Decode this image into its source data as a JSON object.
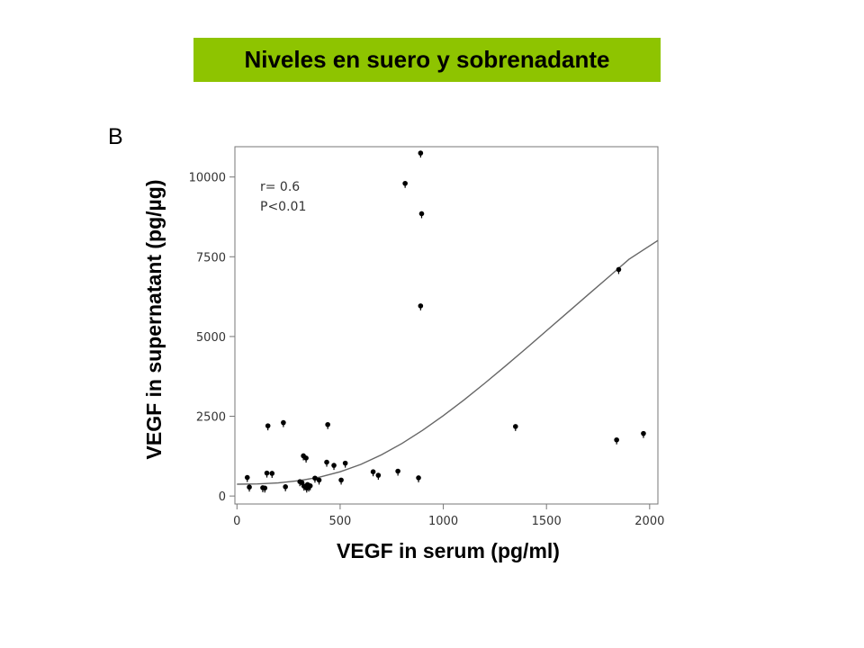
{
  "banner": {
    "title": "Niveles en suero y sobrenadante",
    "background": "#8ec400"
  },
  "chart_data": {
    "type": "scatter",
    "panel_label": "B",
    "xlabel": "VEGF in serum (pg/ml)",
    "ylabel": "VEGF in supernatant (pg/µg)",
    "xlim": [
      -10,
      2040
    ],
    "ylim": [
      -250,
      10950
    ],
    "x_ticks": [
      0,
      500,
      1000,
      1500,
      2000
    ],
    "x_tick_labels": [
      "0",
      "500",
      "1000",
      "1500",
      "2000"
    ],
    "y_ticks": [
      0,
      2500,
      5000,
      7500,
      10000
    ],
    "y_tick_labels": [
      "0",
      "2500",
      "5000",
      "7500",
      "10000"
    ],
    "grid": false,
    "annotations": [
      "r= 0.6",
      "P<0.01"
    ],
    "series": [
      {
        "kind": "points",
        "color": "#000000",
        "points": [
          [
            50,
            580
          ],
          [
            60,
            280
          ],
          [
            125,
            260
          ],
          [
            135,
            250
          ],
          [
            145,
            720
          ],
          [
            150,
            2200
          ],
          [
            170,
            710
          ],
          [
            225,
            2300
          ],
          [
            235,
            290
          ],
          [
            305,
            450
          ],
          [
            315,
            420
          ],
          [
            322,
            1260
          ],
          [
            325,
            310
          ],
          [
            335,
            1190
          ],
          [
            338,
            250
          ],
          [
            342,
            360
          ],
          [
            348,
            280
          ],
          [
            355,
            320
          ],
          [
            378,
            560
          ],
          [
            398,
            500
          ],
          [
            435,
            1060
          ],
          [
            440,
            2240
          ],
          [
            470,
            960
          ],
          [
            505,
            500
          ],
          [
            525,
            1030
          ],
          [
            660,
            760
          ],
          [
            685,
            650
          ],
          [
            780,
            780
          ],
          [
            815,
            9800
          ],
          [
            880,
            570
          ],
          [
            890,
            10750
          ],
          [
            890,
            5960
          ],
          [
            895,
            8850
          ],
          [
            1350,
            2180
          ],
          [
            1840,
            1760
          ],
          [
            1850,
            7100
          ],
          [
            1970,
            1960
          ]
        ]
      },
      {
        "kind": "fit_curve",
        "color": "#666666",
        "points": [
          [
            0,
            370
          ],
          [
            100,
            380
          ],
          [
            200,
            410
          ],
          [
            300,
            480
          ],
          [
            400,
            590
          ],
          [
            500,
            760
          ],
          [
            600,
            990
          ],
          [
            700,
            1290
          ],
          [
            800,
            1650
          ],
          [
            900,
            2060
          ],
          [
            1000,
            2520
          ],
          [
            1100,
            3010
          ],
          [
            1200,
            3530
          ],
          [
            1300,
            4070
          ],
          [
            1400,
            4620
          ],
          [
            1500,
            5180
          ],
          [
            1600,
            5740
          ],
          [
            1700,
            6300
          ],
          [
            1800,
            6860
          ],
          [
            1900,
            7420
          ],
          [
            2040,
            8010
          ]
        ]
      }
    ]
  }
}
